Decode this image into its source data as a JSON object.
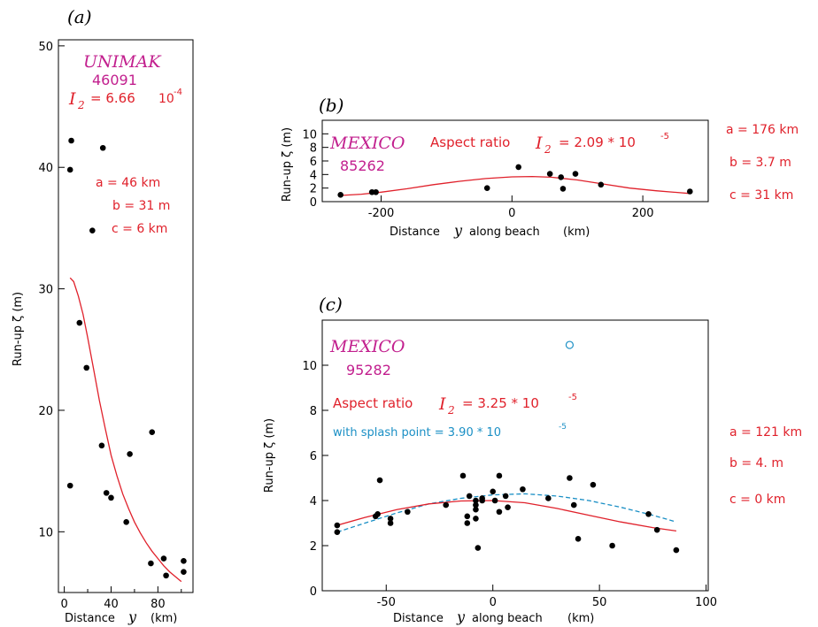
{
  "colors": {
    "red": "#e0212b",
    "magenta": "#c21f8e",
    "blue": "#1a8fc5",
    "black": "#000000"
  },
  "chart_data": [
    {
      "id": "a",
      "type": "scatter",
      "panel_label": "(a)",
      "xlabel": "Distance",
      "xlabel_var": "y",
      "xlabel_unit": "(km)",
      "ylabel": "Run-up ζ (m)",
      "xlim": [
        -5,
        110
      ],
      "ylim": [
        5,
        50.5
      ],
      "xticks": [
        0,
        40,
        80
      ],
      "xtick_minor": [
        20,
        60,
        100
      ],
      "yticks": [
        10,
        20,
        30,
        40,
        50
      ],
      "title_lines": {
        "name": "UNIMAK",
        "code": "46091",
        "aspect_sym": "I",
        "aspect_sub": "2",
        "aspect_val": "= 6.66",
        "aspect_pow": "10",
        "aspect_exp": "-4"
      },
      "params": {
        "a": "a = 46 km",
        "b": "b = 31 m",
        "c": "c = 6 km"
      },
      "points": [
        [
          6,
          42.2
        ],
        [
          5,
          39.8
        ],
        [
          33,
          41.6
        ],
        [
          24,
          34.8
        ],
        [
          13,
          27.2
        ],
        [
          19,
          23.5
        ],
        [
          32,
          17.1
        ],
        [
          56,
          16.4
        ],
        [
          75,
          18.2
        ],
        [
          5,
          13.8
        ],
        [
          36,
          13.2
        ],
        [
          40,
          12.8
        ],
        [
          53,
          10.8
        ],
        [
          74,
          7.4
        ],
        [
          85,
          7.8
        ],
        [
          87,
          6.4
        ],
        [
          102,
          7.6
        ],
        [
          102,
          6.7
        ]
      ],
      "curve": [
        [
          5,
          30.9
        ],
        [
          8,
          30.6
        ],
        [
          12,
          29.4
        ],
        [
          16,
          27.9
        ],
        [
          20,
          26.0
        ],
        [
          25,
          23.4
        ],
        [
          30,
          20.8
        ],
        [
          35,
          18.5
        ],
        [
          40,
          16.3
        ],
        [
          45,
          14.6
        ],
        [
          50,
          13.1
        ],
        [
          55,
          11.9
        ],
        [
          60,
          10.8
        ],
        [
          65,
          9.9
        ],
        [
          70,
          9.1
        ],
        [
          75,
          8.4
        ],
        [
          80,
          7.8
        ],
        [
          85,
          7.2
        ],
        [
          90,
          6.7
        ],
        [
          95,
          6.3
        ],
        [
          100,
          5.9
        ]
      ]
    },
    {
      "id": "b",
      "type": "scatter",
      "panel_label": "(b)",
      "xlabel": "Distance",
      "xlabel_var": "y",
      "xlabel_rest": "along beach",
      "xlabel_unit": "(km)",
      "ylabel": "Run-up ζ (m)",
      "xlim": [
        -290,
        300
      ],
      "ylim": [
        0,
        12
      ],
      "xticks": [
        -200,
        0,
        200
      ],
      "yticks": [
        0,
        2,
        4,
        6,
        8,
        10
      ],
      "title_lines": {
        "name": "MEXICO",
        "code": "85262",
        "aspect_text": "Aspect ratio",
        "aspect_sym": "I",
        "aspect_sub": "2",
        "aspect_val": "=  2.09 * 10",
        "aspect_exp": "-5"
      },
      "params": {
        "a": "a = 176 km",
        "b": "b = 3.7 m",
        "c": "c = 31 km"
      },
      "points": [
        [
          -262,
          1.0
        ],
        [
          -214,
          1.4
        ],
        [
          -208,
          1.4
        ],
        [
          -38,
          2.0
        ],
        [
          10,
          5.1
        ],
        [
          58,
          4.1
        ],
        [
          75,
          3.6
        ],
        [
          78,
          1.9
        ],
        [
          97,
          4.1
        ],
        [
          136,
          2.5
        ],
        [
          272,
          1.5
        ]
      ],
      "curve": [
        [
          -265,
          0.9
        ],
        [
          -230,
          1.1
        ],
        [
          -200,
          1.4
        ],
        [
          -160,
          1.9
        ],
        [
          -120,
          2.5
        ],
        [
          -80,
          3.0
        ],
        [
          -40,
          3.4
        ],
        [
          0,
          3.65
        ],
        [
          31,
          3.7
        ],
        [
          60,
          3.6
        ],
        [
          100,
          3.2
        ],
        [
          140,
          2.6
        ],
        [
          180,
          2.0
        ],
        [
          220,
          1.6
        ],
        [
          272,
          1.2
        ]
      ]
    },
    {
      "id": "c",
      "type": "scatter",
      "panel_label": "(c)",
      "xlabel": "Distance",
      "xlabel_var": "y",
      "xlabel_rest": "along beach",
      "xlabel_unit": "(km)",
      "ylabel": "Run-up ζ (m)",
      "xlim": [
        -80,
        101
      ],
      "ylim": [
        0,
        12
      ],
      "xticks": [
        -50,
        0,
        50,
        100
      ],
      "yticks": [
        0,
        2,
        4,
        6,
        8,
        10
      ],
      "title_lines": {
        "name": "MEXICO",
        "code": "95282",
        "aspect_text": "Aspect ratio",
        "aspect_sym": "I",
        "aspect_sub": "2",
        "aspect_val": "=   3.25 * 10",
        "aspect_exp": "-5",
        "splash_text": "with splash point  =  3.90 * 10",
        "splash_exp": "-5"
      },
      "params": {
        "a": "a = 121 km",
        "b": "b = 4. m",
        "c": "c = 0 km"
      },
      "points": [
        [
          -73,
          2.6
        ],
        [
          -73,
          2.9
        ],
        [
          -55,
          3.3
        ],
        [
          -54,
          3.4
        ],
        [
          -53,
          4.9
        ],
        [
          -48,
          3.0
        ],
        [
          -48,
          3.2
        ],
        [
          -40,
          3.5
        ],
        [
          -22,
          3.8
        ],
        [
          -14,
          5.1
        ],
        [
          -12,
          3.3
        ],
        [
          -12,
          3.0
        ],
        [
          -11,
          4.2
        ],
        [
          -8,
          3.8
        ],
        [
          -8,
          3.6
        ],
        [
          -8,
          4.0
        ],
        [
          -8,
          3.2
        ],
        [
          -7,
          1.9
        ],
        [
          -5,
          4.0
        ],
        [
          -5,
          4.1
        ],
        [
          0,
          4.4
        ],
        [
          1,
          4.0
        ],
        [
          3,
          5.1
        ],
        [
          3,
          3.5
        ],
        [
          6,
          4.2
        ],
        [
          7,
          3.7
        ],
        [
          14,
          4.5
        ],
        [
          26,
          4.1
        ],
        [
          36,
          5.0
        ],
        [
          38,
          3.8
        ],
        [
          40,
          2.3
        ],
        [
          47,
          4.7
        ],
        [
          56,
          2.0
        ],
        [
          73,
          3.4
        ],
        [
          77,
          2.7
        ],
        [
          86,
          1.8
        ]
      ],
      "splash_point": [
        36,
        10.9
      ],
      "curve": [
        [
          -73,
          2.9
        ],
        [
          -60,
          3.25
        ],
        [
          -45,
          3.6
        ],
        [
          -30,
          3.85
        ],
        [
          -15,
          3.98
        ],
        [
          0,
          4.0
        ],
        [
          15,
          3.9
        ],
        [
          30,
          3.65
        ],
        [
          45,
          3.35
        ],
        [
          60,
          3.05
        ],
        [
          75,
          2.8
        ],
        [
          86,
          2.65
        ]
      ],
      "curve_splash": [
        [
          -73,
          2.6
        ],
        [
          -60,
          3.0
        ],
        [
          -45,
          3.45
        ],
        [
          -30,
          3.85
        ],
        [
          -15,
          4.1
        ],
        [
          0,
          4.25
        ],
        [
          15,
          4.3
        ],
        [
          30,
          4.2
        ],
        [
          45,
          4.0
        ],
        [
          60,
          3.7
        ],
        [
          75,
          3.35
        ],
        [
          86,
          3.05
        ]
      ]
    }
  ]
}
